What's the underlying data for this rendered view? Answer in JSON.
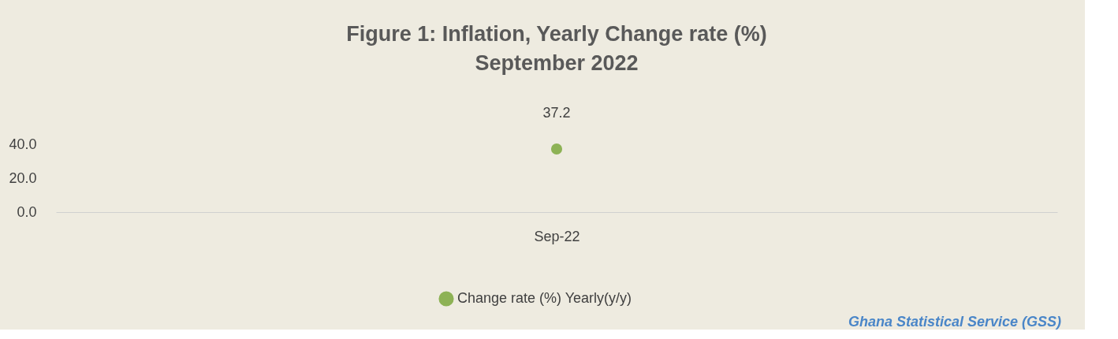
{
  "chart_data": {
    "type": "line",
    "title": "Figure 1: Inflation, Yearly Change rate (%)",
    "subtitle": "September  2022",
    "categories": [
      "Sep-22"
    ],
    "series": [
      {
        "name": "Change rate (%) Yearly(y/y)",
        "color": "#8db255",
        "values": [
          37.2
        ]
      }
    ],
    "ylim": [
      0,
      40
    ],
    "yticks": [
      {
        "value": 0,
        "label": "0.0"
      },
      {
        "value": 20,
        "label": "20.0"
      },
      {
        "value": 40,
        "label": "40.0"
      }
    ],
    "data_labels": true,
    "marker": "circle",
    "legend": "bottom",
    "grid": false,
    "annotations": [
      "Ghana Statistical Service (GSS)"
    ]
  }
}
